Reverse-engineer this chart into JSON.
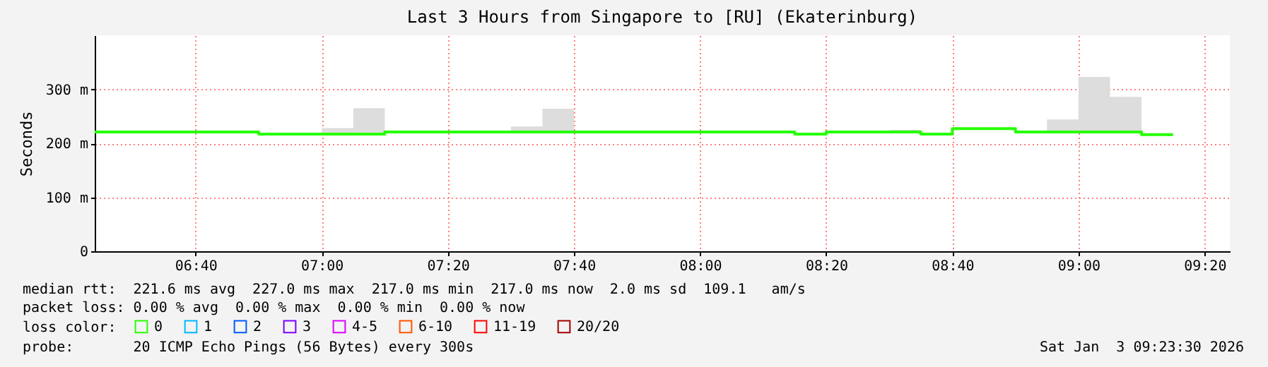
{
  "chart_data": {
    "type": "step",
    "title": "Last 3 Hours from Singapore to [RU] (Ekaterinburg)",
    "ylabel": "Seconds",
    "legend_title": "loss color:",
    "legend": "bottom",
    "grid": true,
    "x": [
      "2026-01-03T06:24",
      "2026-01-03T06:25",
      "2026-01-03T06:30",
      "2026-01-03T06:35",
      "2026-01-03T06:40",
      "2026-01-03T06:45",
      "2026-01-03T06:50",
      "2026-01-03T06:55",
      "2026-01-03T07:00",
      "2026-01-03T07:05",
      "2026-01-03T07:10",
      "2026-01-03T07:15",
      "2026-01-03T07:20",
      "2026-01-03T07:25",
      "2026-01-03T07:30",
      "2026-01-03T07:35",
      "2026-01-03T07:40",
      "2026-01-03T07:45",
      "2026-01-03T07:50",
      "2026-01-03T07:55",
      "2026-01-03T08:00",
      "2026-01-03T08:05",
      "2026-01-03T08:10",
      "2026-01-03T08:15",
      "2026-01-03T08:20",
      "2026-01-03T08:25",
      "2026-01-03T08:30",
      "2026-01-03T08:35",
      "2026-01-03T08:40",
      "2026-01-03T08:45",
      "2026-01-03T08:50",
      "2026-01-03T08:55",
      "2026-01-03T09:00",
      "2026-01-03T09:05",
      "2026-01-03T09:10",
      "2026-01-03T09:15"
    ],
    "series": [
      {
        "name": "0",
        "color": "#26ff00",
        "values": [
          221,
          221,
          221,
          221,
          221,
          221,
          217,
          217,
          217,
          217,
          221,
          221,
          221,
          221,
          221,
          221,
          221,
          221,
          221,
          221,
          221,
          221,
          221,
          217,
          221,
          221,
          221,
          217,
          227,
          227,
          221,
          221,
          221,
          221,
          216,
          216
        ],
        "lower": [
          221,
          221,
          221,
          221,
          221,
          221,
          217,
          217,
          217,
          217,
          221,
          221,
          221,
          221,
          221,
          221,
          221,
          221,
          221,
          221,
          221,
          221,
          221,
          217,
          221,
          221,
          221,
          217,
          227,
          227,
          221,
          221,
          221,
          221,
          216,
          216
        ],
        "upper": [
          221,
          221,
          221,
          221,
          221,
          221,
          217,
          217,
          228,
          265,
          221,
          221,
          221,
          221,
          231,
          264,
          221,
          221,
          221,
          221,
          221,
          221,
          221,
          217,
          221,
          221,
          225,
          217,
          227,
          227,
          221,
          244,
          323,
          286,
          216,
          216
        ]
      },
      {
        "name": "1",
        "color": "#00b8ff",
        "values": [
          null,
          null,
          null,
          null,
          null,
          null,
          null,
          null,
          null,
          null,
          null,
          null,
          null,
          null,
          null,
          null,
          null,
          null,
          null,
          null,
          null,
          null,
          null,
          null,
          null,
          null,
          null,
          null,
          null,
          null,
          null,
          null,
          null,
          null,
          null,
          null
        ]
      },
      {
        "name": "2",
        "color": "#0059ff",
        "values": [
          null,
          null,
          null,
          null,
          null,
          null,
          null,
          null,
          null,
          null,
          null,
          null,
          null,
          null,
          null,
          null,
          null,
          null,
          null,
          null,
          null,
          null,
          null,
          null,
          null,
          null,
          null,
          null,
          null,
          null,
          null,
          null,
          null,
          null,
          null,
          null
        ]
      },
      {
        "name": "3",
        "color": "#7e00ff",
        "values": [
          null,
          null,
          null,
          null,
          null,
          null,
          null,
          null,
          null,
          null,
          null,
          null,
          null,
          null,
          null,
          null,
          null,
          null,
          null,
          null,
          null,
          null,
          null,
          null,
          null,
          null,
          null,
          null,
          null,
          null,
          null,
          null,
          null,
          null,
          null,
          null
        ]
      },
      {
        "name": "4-5",
        "color": "#dd00ff",
        "values": [
          null,
          null,
          null,
          null,
          null,
          null,
          null,
          null,
          null,
          null,
          null,
          null,
          null,
          null,
          null,
          null,
          null,
          null,
          null,
          null,
          null,
          null,
          null,
          null,
          null,
          null,
          null,
          null,
          null,
          null,
          null,
          null,
          null,
          null,
          null,
          null
        ]
      },
      {
        "name": "6-10",
        "color": "#ff5500",
        "values": [
          null,
          null,
          null,
          null,
          null,
          null,
          null,
          null,
          null,
          null,
          null,
          null,
          null,
          null,
          null,
          null,
          null,
          null,
          null,
          null,
          null,
          null,
          null,
          null,
          null,
          null,
          null,
          null,
          null,
          null,
          null,
          null,
          null,
          null,
          null,
          null
        ]
      },
      {
        "name": "11-19",
        "color": "#ff0000",
        "values": [
          null,
          null,
          null,
          null,
          null,
          null,
          null,
          null,
          null,
          null,
          null,
          null,
          null,
          null,
          null,
          null,
          null,
          null,
          null,
          null,
          null,
          null,
          null,
          null,
          null,
          null,
          null,
          null,
          null,
          null,
          null,
          null,
          null,
          null,
          null,
          null
        ]
      },
      {
        "name": "20/20",
        "color": "#a10000",
        "values": [
          null,
          null,
          null,
          null,
          null,
          null,
          null,
          null,
          null,
          null,
          null,
          null,
          null,
          null,
          null,
          null,
          null,
          null,
          null,
          null,
          null,
          null,
          null,
          null,
          null,
          null,
          null,
          null,
          null,
          null,
          null,
          null,
          null,
          null,
          null,
          null
        ]
      }
    ],
    "xlim": [
      "2026-01-03T06:24",
      "2026-01-03T09:24"
    ],
    "xticks": [
      {
        "value": "2026-01-03T06:40",
        "label": "06:40"
      },
      {
        "value": "2026-01-03T07:00",
        "label": "07:00"
      },
      {
        "value": "2026-01-03T07:20",
        "label": "07:20"
      },
      {
        "value": "2026-01-03T07:40",
        "label": "07:40"
      },
      {
        "value": "2026-01-03T08:00",
        "label": "08:00"
      },
      {
        "value": "2026-01-03T08:20",
        "label": "08:20"
      },
      {
        "value": "2026-01-03T08:40",
        "label": "08:40"
      },
      {
        "value": "2026-01-03T09:00",
        "label": "09:00"
      },
      {
        "value": "2026-01-03T09:20",
        "label": "09:20"
      }
    ],
    "ylim": [
      0,
      400
    ],
    "yticks": [
      0,
      {
        "value": 100,
        "label": "100 m"
      },
      {
        "value": 200,
        "label": "200 m"
      },
      {
        "value": 300,
        "label": "300 m"
      }
    ],
    "annotations": [
      "median rtt:  221.6 ms avg  227.0 ms max  217.0 ms min  217.0 ms now  2.0 ms sd  109.1   am/s",
      "packet loss: 0.00 % avg  0.00 % max  0.00 % min  0.00 % now",
      "probe:       20 ICMP Echo Pings (56 Bytes) every 300s",
      "Sat Jan  3 09:23:30 2026"
    ]
  }
}
